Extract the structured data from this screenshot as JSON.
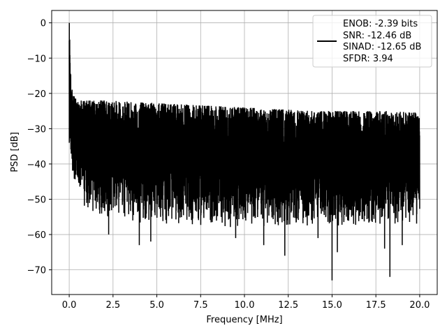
{
  "chart_data": {
    "type": "line",
    "title": "",
    "xlabel": "Frequency [MHz]",
    "ylabel": "PSD [dB]",
    "xlim": [
      -1.0,
      21.0
    ],
    "ylim": [
      -77,
      3.5
    ],
    "x_ticks": [
      0.0,
      2.5,
      5.0,
      7.5,
      10.0,
      12.5,
      15.0,
      17.5,
      20.0
    ],
    "x_tick_labels": [
      "0.0",
      "2.5",
      "5.0",
      "7.5",
      "10.0",
      "12.5",
      "15.0",
      "17.5",
      "20.0"
    ],
    "y_ticks": [
      0,
      -10,
      -20,
      -30,
      -40,
      -50,
      -60,
      -70
    ],
    "y_tick_labels": [
      "0",
      "−10",
      "−20",
      "−30",
      "−40",
      "−50",
      "−60",
      "−70"
    ],
    "grid": true,
    "legend_position": "top-right",
    "legend_lines": [
      "ENOB: -2.39 bits",
      "SNR: -12.46 dB",
      "SINAD: -12.65 dB",
      "SFDR: 3.94"
    ],
    "series": [
      {
        "color": "#000000",
        "x": [
          0.0,
          0.02,
          0.05,
          0.1,
          0.15,
          0.2,
          0.3,
          0.5,
          1.0,
          2.0,
          4.0,
          6.0,
          8.0,
          10.0,
          12.0,
          14.0,
          16.0,
          18.0,
          20.0
        ],
        "upper_envelope": [
          -5,
          0,
          -10,
          -16,
          -18,
          -20,
          -21,
          -22,
          -22,
          -22,
          -22.5,
          -23,
          -23.5,
          -24,
          -24.5,
          -25,
          -25,
          -25,
          -25.5
        ],
        "lower_envelope": [
          -40,
          -30,
          -35,
          -40,
          -43,
          -45,
          -47,
          -50,
          -53,
          -55,
          -57,
          -57,
          -58,
          -58,
          -58,
          -58,
          -58,
          -58,
          -58
        ]
      }
    ],
    "deep_dips": [
      {
        "x": 2.25,
        "y": -60
      },
      {
        "x": 4.0,
        "y": -63
      },
      {
        "x": 4.65,
        "y": -62
      },
      {
        "x": 9.5,
        "y": -61
      },
      {
        "x": 11.1,
        "y": -63
      },
      {
        "x": 12.3,
        "y": -66
      },
      {
        "x": 14.2,
        "y": -61
      },
      {
        "x": 15.0,
        "y": -73
      },
      {
        "x": 15.3,
        "y": -65
      },
      {
        "x": 18.0,
        "y": -64
      },
      {
        "x": 18.3,
        "y": -72
      },
      {
        "x": 19.0,
        "y": -63
      }
    ]
  }
}
